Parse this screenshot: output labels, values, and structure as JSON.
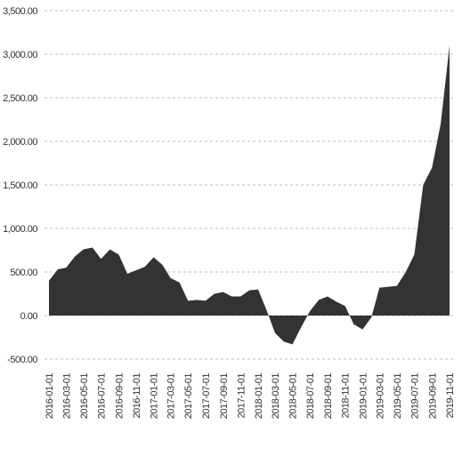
{
  "chart_data": {
    "type": "area",
    "color": "#333333",
    "x": [
      "2016-01-01",
      "2016-02-01",
      "2016-03-01",
      "2016-04-01",
      "2016-05-01",
      "2016-06-01",
      "2016-07-01",
      "2016-08-01",
      "2016-09-01",
      "2016-10-01",
      "2016-11-01",
      "2016-12-01",
      "2017-01-01",
      "2017-02-01",
      "2017-03-01",
      "2017-04-01",
      "2017-05-01",
      "2017-06-01",
      "2017-07-01",
      "2017-08-01",
      "2017-09-01",
      "2017-10-01",
      "2017-11-01",
      "2017-12-01",
      "2018-01-01",
      "2018-02-01",
      "2018-03-01",
      "2018-04-01",
      "2018-05-01",
      "2018-06-01",
      "2018-07-01",
      "2018-08-01",
      "2018-09-01",
      "2018-10-01",
      "2018-11-01",
      "2018-12-01",
      "2019-01-01",
      "2019-02-01",
      "2019-03-01",
      "2019-04-01",
      "2019-05-01",
      "2019-06-01",
      "2019-07-01",
      "2019-08-01",
      "2019-09-01",
      "2019-10-01",
      "2019-11-01"
    ],
    "values": [
      400,
      530,
      550,
      680,
      760,
      780,
      650,
      760,
      700,
      480,
      520,
      560,
      670,
      580,
      430,
      380,
      170,
      180,
      170,
      250,
      270,
      220,
      220,
      290,
      300,
      50,
      -200,
      -300,
      -330,
      -130,
      50,
      180,
      220,
      160,
      110,
      -100,
      -160,
      -20,
      320,
      330,
      340,
      500,
      700,
      1500,
      1700,
      2200,
      3100
    ],
    "ylim": [
      -500,
      3500
    ],
    "yticks": [
      {
        "value": -500,
        "label": "-500.00"
      },
      {
        "value": 0,
        "label": "0.00"
      },
      {
        "value": 500,
        "label": "500.00"
      },
      {
        "value": 1000,
        "label": "1,000.00"
      },
      {
        "value": 1500,
        "label": "1,500.00"
      },
      {
        "value": 2000,
        "label": "2,000.00"
      },
      {
        "value": 2500,
        "label": "2,500.00"
      },
      {
        "value": 3000,
        "label": "3,000.00"
      },
      {
        "value": 3500,
        "label": "3,500.00"
      }
    ],
    "xticks": [
      "2016-01-01",
      "2016-03-01",
      "2016-05-01",
      "2016-07-01",
      "2016-09-01",
      "2016-11-01",
      "2017-01-01",
      "2017-03-01",
      "2017-05-01",
      "2017-07-01",
      "2017-09-01",
      "2017-11-01",
      "2018-01-01",
      "2018-03-01",
      "2018-05-01",
      "2018-07-01",
      "2018-09-01",
      "2018-11-01",
      "2019-01-01",
      "2019-03-01",
      "2019-05-01",
      "2019-07-01",
      "2019-09-01",
      "2019-11-01"
    ],
    "grid": true
  }
}
